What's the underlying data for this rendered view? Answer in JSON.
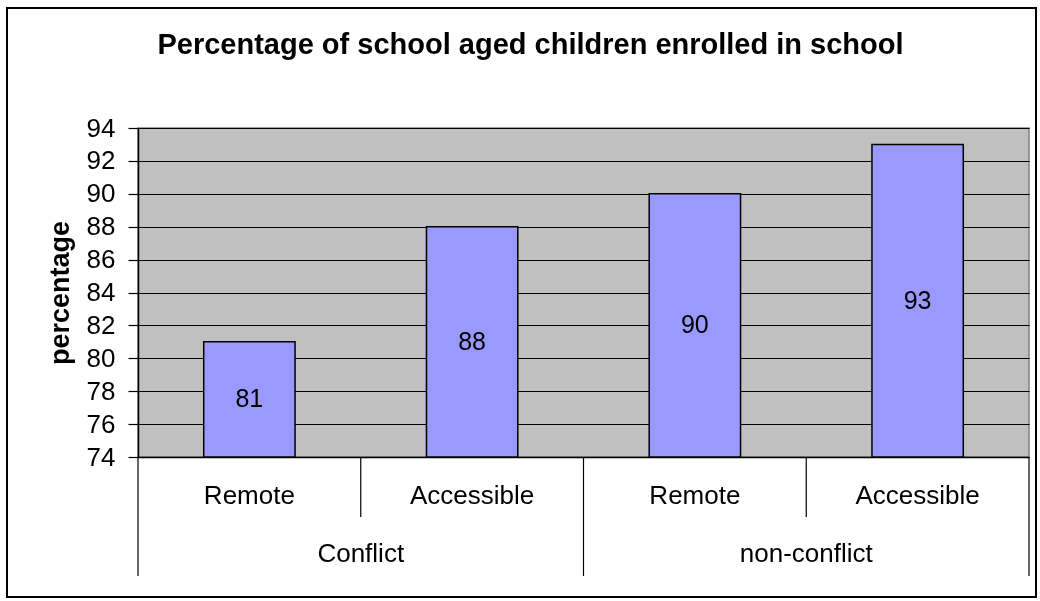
{
  "chart_data": {
    "type": "bar",
    "title": "Percentage of school aged children enrolled in school",
    "ylabel": "percentage",
    "categories": [
      "Remote",
      "Accessible",
      "Remote",
      "Accessible"
    ],
    "annotations": [
      "Conflict",
      "non-conflict"
    ],
    "values": [
      81,
      88,
      90,
      93
    ],
    "color": "#9999ff",
    "ylim": [
      74,
      94
    ],
    "yticks": [
      74,
      76,
      78,
      80,
      82,
      84,
      86,
      88,
      90,
      92,
      94
    ],
    "grid": "y",
    "data_labels": true
  }
}
